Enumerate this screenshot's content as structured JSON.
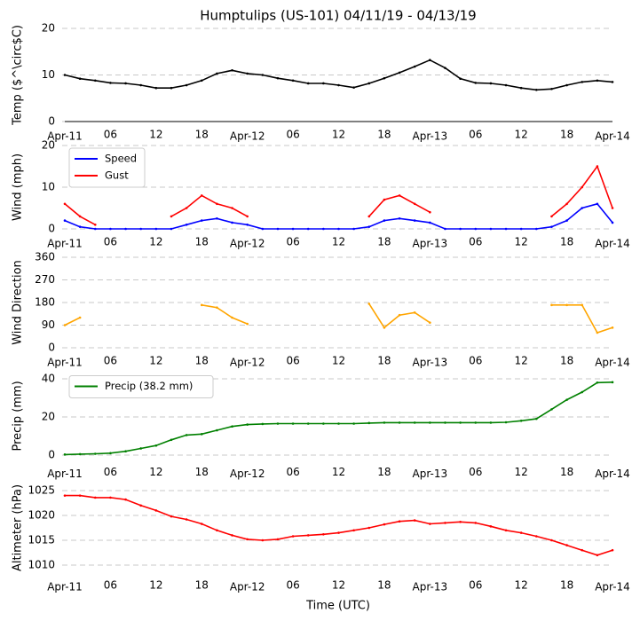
{
  "chart_data": [
    {
      "type": "line",
      "title": "Humptulips (US-101) 04/11/19 - 04/13/19",
      "ylabel": "Temp ($^\\circ$C)",
      "x": [
        0,
        2,
        4,
        6,
        8,
        10,
        12,
        14,
        16,
        18,
        20,
        22,
        24,
        26,
        28,
        30,
        32,
        34,
        36,
        38,
        40,
        42,
        44,
        46,
        48,
        50,
        52,
        54,
        56,
        58,
        60,
        62,
        64,
        66,
        68,
        70,
        72
      ],
      "xlim": [
        0,
        72
      ],
      "xticks": [
        {
          "value": 0,
          "label": "Apr-11"
        },
        {
          "value": 6,
          "label": "06"
        },
        {
          "value": 12,
          "label": "12"
        },
        {
          "value": 18,
          "label": "18"
        },
        {
          "value": 24,
          "label": "Apr-12"
        },
        {
          "value": 30,
          "label": "06"
        },
        {
          "value": 36,
          "label": "12"
        },
        {
          "value": 42,
          "label": "18"
        },
        {
          "value": 48,
          "label": "Apr-13"
        },
        {
          "value": 54,
          "label": "06"
        },
        {
          "value": 60,
          "label": "12"
        },
        {
          "value": 66,
          "label": "18"
        },
        {
          "value": 72,
          "label": "Apr-14"
        }
      ],
      "ylim": [
        0,
        20
      ],
      "yticks": [
        0,
        10,
        20
      ],
      "grid": true,
      "series": [
        {
          "color": "#000000",
          "values": [
            10,
            9.2,
            8.8,
            8.3,
            8.2,
            7.8,
            7.2,
            7.2,
            7.8,
            8.8,
            10.3,
            11,
            10.3,
            10,
            9.3,
            8.8,
            8.2,
            8.2,
            7.8,
            7.3,
            8.2,
            9.3,
            10.5,
            11.8,
            13.2,
            11.5,
            9.2,
            8.3,
            8.2,
            7.8,
            7.2,
            6.8,
            7,
            7.8,
            8.5,
            8.8,
            8.5
          ]
        }
      ]
    },
    {
      "type": "line",
      "ylabel": "Wind (mph)",
      "x": [
        0,
        2,
        4,
        6,
        8,
        10,
        12,
        14,
        16,
        18,
        20,
        22,
        24,
        26,
        28,
        30,
        32,
        34,
        36,
        38,
        40,
        42,
        44,
        46,
        48,
        50,
        52,
        54,
        56,
        58,
        60,
        62,
        64,
        66,
        68,
        70,
        72
      ],
      "xlim": [
        0,
        72
      ],
      "xticks": [
        {
          "value": 0,
          "label": "Apr-11"
        },
        {
          "value": 6,
          "label": "06"
        },
        {
          "value": 12,
          "label": "12"
        },
        {
          "value": 18,
          "label": "18"
        },
        {
          "value": 24,
          "label": "Apr-12"
        },
        {
          "value": 30,
          "label": "06"
        },
        {
          "value": 36,
          "label": "12"
        },
        {
          "value": 42,
          "label": "18"
        },
        {
          "value": 48,
          "label": "Apr-13"
        },
        {
          "value": 54,
          "label": "06"
        },
        {
          "value": 60,
          "label": "12"
        },
        {
          "value": 66,
          "label": "18"
        },
        {
          "value": 72,
          "label": "Apr-14"
        }
      ],
      "ylim": [
        0,
        20
      ],
      "yticks": [
        0,
        10,
        20
      ],
      "grid": true,
      "legend": "upper left",
      "series": [
        {
          "name": "Speed",
          "color": "#0000ff",
          "values": [
            2,
            0.5,
            0,
            0,
            0,
            0,
            0,
            0,
            1,
            2,
            2.5,
            1.5,
            1,
            0,
            0,
            0,
            0,
            0,
            0,
            0,
            0.5,
            2,
            2.5,
            2,
            1.5,
            0,
            0,
            0,
            0,
            0,
            0,
            0,
            0.5,
            2,
            5,
            6,
            1.5
          ]
        },
        {
          "name": "Gust",
          "color": "#ff0000",
          "values": [
            6,
            3,
            1,
            null,
            null,
            null,
            null,
            3,
            5,
            8,
            6,
            5,
            3,
            null,
            null,
            null,
            null,
            null,
            null,
            null,
            3,
            7,
            8,
            6,
            4,
            null,
            null,
            null,
            null,
            null,
            null,
            null,
            3,
            6,
            10,
            15,
            5
          ]
        }
      ]
    },
    {
      "type": "line",
      "ylabel": "Wind Direction",
      "x": [
        0,
        2,
        4,
        6,
        8,
        10,
        12,
        14,
        16,
        18,
        20,
        22,
        24,
        26,
        28,
        30,
        32,
        34,
        36,
        38,
        40,
        42,
        44,
        46,
        48,
        50,
        52,
        54,
        56,
        58,
        60,
        62,
        64,
        66,
        68,
        70,
        72
      ],
      "xlim": [
        0,
        72
      ],
      "xticks": [
        {
          "value": 0,
          "label": "Apr-11"
        },
        {
          "value": 6,
          "label": "06"
        },
        {
          "value": 12,
          "label": "12"
        },
        {
          "value": 18,
          "label": "18"
        },
        {
          "value": 24,
          "label": "Apr-12"
        },
        {
          "value": 30,
          "label": "06"
        },
        {
          "value": 36,
          "label": "12"
        },
        {
          "value": 42,
          "label": "18"
        },
        {
          "value": 48,
          "label": "Apr-13"
        },
        {
          "value": 54,
          "label": "06"
        },
        {
          "value": 60,
          "label": "12"
        },
        {
          "value": 66,
          "label": "18"
        },
        {
          "value": 72,
          "label": "Apr-14"
        }
      ],
      "ylim": [
        0,
        360
      ],
      "yticks": [
        0,
        90,
        180,
        270,
        360
      ],
      "grid": true,
      "series": [
        {
          "color": "#ffa500",
          "values": [
            90,
            120,
            null,
            null,
            null,
            null,
            null,
            null,
            null,
            170,
            160,
            120,
            95,
            null,
            null,
            null,
            null,
            null,
            null,
            null,
            175,
            80,
            130,
            140,
            100,
            null,
            null,
            null,
            null,
            null,
            null,
            null,
            170,
            170,
            170,
            60,
            80
          ]
        }
      ]
    },
    {
      "type": "line",
      "ylabel": "Precip (mm)",
      "x": [
        0,
        2,
        4,
        6,
        8,
        10,
        12,
        14,
        16,
        18,
        20,
        22,
        24,
        26,
        28,
        30,
        32,
        34,
        36,
        38,
        40,
        42,
        44,
        46,
        48,
        50,
        52,
        54,
        56,
        58,
        60,
        62,
        64,
        66,
        68,
        70,
        72
      ],
      "xlim": [
        0,
        72
      ],
      "xticks": [
        {
          "value": 0,
          "label": "Apr-11"
        },
        {
          "value": 6,
          "label": "06"
        },
        {
          "value": 12,
          "label": "12"
        },
        {
          "value": 18,
          "label": "18"
        },
        {
          "value": 24,
          "label": "Apr-12"
        },
        {
          "value": 30,
          "label": "06"
        },
        {
          "value": 36,
          "label": "12"
        },
        {
          "value": 42,
          "label": "18"
        },
        {
          "value": 48,
          "label": "Apr-13"
        },
        {
          "value": 54,
          "label": "06"
        },
        {
          "value": 60,
          "label": "12"
        },
        {
          "value": 66,
          "label": "18"
        },
        {
          "value": 72,
          "label": "Apr-14"
        }
      ],
      "ylim": [
        -2,
        43
      ],
      "yticks": [
        0,
        20,
        40
      ],
      "grid": true,
      "legend": "upper left",
      "series": [
        {
          "name": "Precip (38.2 mm)",
          "color": "#008000",
          "values": [
            0.3,
            0.5,
            0.7,
            1,
            2,
            3.5,
            5,
            8,
            10.5,
            11,
            13,
            15,
            16,
            16.3,
            16.5,
            16.5,
            16.5,
            16.5,
            16.5,
            16.5,
            16.8,
            17,
            17,
            17,
            17,
            17,
            17,
            17,
            17,
            17.2,
            18,
            19,
            24,
            29,
            33,
            38,
            38.2
          ]
        }
      ]
    },
    {
      "type": "line",
      "ylabel": "Altimeter (hPa)",
      "xlabel": "Time (UTC)",
      "x": [
        0,
        2,
        4,
        6,
        8,
        10,
        12,
        14,
        16,
        18,
        20,
        22,
        24,
        26,
        28,
        30,
        32,
        34,
        36,
        38,
        40,
        42,
        44,
        46,
        48,
        50,
        52,
        54,
        56,
        58,
        60,
        62,
        64,
        66,
        68,
        70,
        72
      ],
      "xlim": [
        0,
        72
      ],
      "xticks": [
        {
          "value": 0,
          "label": "Apr-11"
        },
        {
          "value": 6,
          "label": "06"
        },
        {
          "value": 12,
          "label": "12"
        },
        {
          "value": 18,
          "label": "18"
        },
        {
          "value": 24,
          "label": "Apr-12"
        },
        {
          "value": 30,
          "label": "06"
        },
        {
          "value": 36,
          "label": "12"
        },
        {
          "value": 42,
          "label": "18"
        },
        {
          "value": 48,
          "label": "Apr-13"
        },
        {
          "value": 54,
          "label": "06"
        },
        {
          "value": 60,
          "label": "12"
        },
        {
          "value": 66,
          "label": "18"
        },
        {
          "value": 72,
          "label": "Apr-14"
        }
      ],
      "ylim": [
        1008.6,
        1026.4
      ],
      "yticks": [
        1010,
        1015,
        1020,
        1025
      ],
      "grid": true,
      "series": [
        {
          "color": "#ff0000",
          "values": [
            1024,
            1024,
            1023.6,
            1023.6,
            1023.2,
            1022,
            1021,
            1019.8,
            1019.2,
            1018.3,
            1017,
            1016,
            1015.2,
            1015,
            1015.2,
            1015.8,
            1016,
            1016.2,
            1016.5,
            1017,
            1017.5,
            1018.2,
            1018.8,
            1019,
            1018.3,
            1018.5,
            1018.7,
            1018.5,
            1017.8,
            1017,
            1016.5,
            1015.8,
            1015,
            1014,
            1013,
            1012,
            1013
          ]
        }
      ]
    }
  ]
}
